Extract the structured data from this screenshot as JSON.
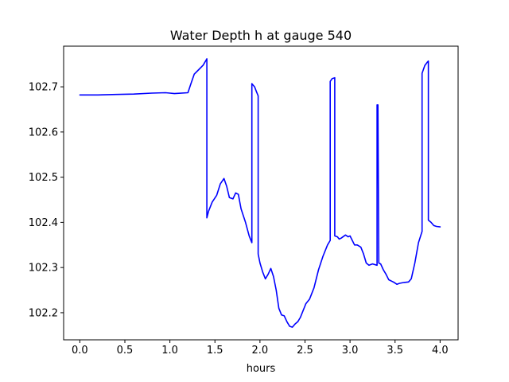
{
  "chart_data": {
    "type": "line",
    "title": "Water Depth h at gauge 540",
    "xlabel": "hours",
    "ylabel": "",
    "xlim": [
      -0.18,
      4.2
    ],
    "ylim": [
      102.14,
      102.79
    ],
    "xticks": [
      0.0,
      0.5,
      1.0,
      1.5,
      2.0,
      2.5,
      3.0,
      3.5,
      4.0
    ],
    "xtick_labels": [
      "0.0",
      "0.5",
      "1.0",
      "1.5",
      "2.0",
      "2.5",
      "3.0",
      "3.5",
      "4.0"
    ],
    "yticks": [
      102.2,
      102.3,
      102.4,
      102.5,
      102.6,
      102.7
    ],
    "ytick_labels": [
      "102.2",
      "102.3",
      "102.4",
      "102.5",
      "102.6",
      "102.7"
    ],
    "grid": false,
    "colors": {
      "line": "#0000ff",
      "axes": "#000000",
      "background": "#ffffff"
    },
    "series": [
      {
        "x": [
          0.0,
          0.2,
          0.4,
          0.6,
          0.8,
          0.95,
          1.0,
          1.05,
          1.2,
          1.23,
          1.27,
          1.32,
          1.37,
          1.41,
          1.41,
          1.43,
          1.47,
          1.52,
          1.56,
          1.6,
          1.63,
          1.66,
          1.7,
          1.73,
          1.76,
          1.79,
          1.84,
          1.88,
          1.91,
          1.91,
          1.94,
          1.96,
          1.98,
          1.98,
          2.0,
          2.03,
          2.06,
          2.09,
          2.12,
          2.15,
          2.18,
          2.21,
          2.24,
          2.27,
          2.3,
          2.33,
          2.36,
          2.39,
          2.42,
          2.45,
          2.48,
          2.51,
          2.55,
          2.6,
          2.65,
          2.7,
          2.75,
          2.78,
          2.78,
          2.8,
          2.83,
          2.83,
          2.86,
          2.88,
          2.9,
          2.95,
          2.98,
          3.0,
          3.02,
          3.05,
          3.08,
          3.12,
          3.15,
          3.18,
          3.21,
          3.25,
          3.3,
          3.3,
          3.31,
          3.32,
          3.34,
          3.37,
          3.4,
          3.43,
          3.46,
          3.49,
          3.52,
          3.55,
          3.6,
          3.65,
          3.68,
          3.72,
          3.76,
          3.8,
          3.8,
          3.83,
          3.86,
          3.87,
          3.87,
          3.9,
          3.93,
          3.96,
          4.0
        ],
        "y": [
          102.682,
          102.682,
          102.683,
          102.684,
          102.686,
          102.687,
          102.686,
          102.685,
          102.687,
          102.705,
          102.728,
          102.738,
          102.748,
          102.762,
          102.41,
          102.425,
          102.445,
          102.46,
          102.485,
          102.497,
          102.48,
          102.455,
          102.452,
          102.465,
          102.462,
          102.43,
          102.4,
          102.37,
          102.355,
          102.707,
          102.7,
          102.69,
          102.68,
          102.33,
          102.31,
          102.29,
          102.275,
          102.285,
          102.298,
          102.28,
          102.25,
          102.21,
          102.195,
          102.193,
          102.18,
          102.17,
          102.168,
          102.175,
          102.18,
          102.19,
          102.205,
          102.22,
          102.23,
          102.255,
          102.295,
          102.325,
          102.35,
          102.36,
          102.712,
          102.718,
          102.72,
          102.37,
          102.368,
          102.363,
          102.365,
          102.372,
          102.368,
          102.37,
          102.362,
          102.35,
          102.35,
          102.345,
          102.33,
          102.31,
          102.305,
          102.308,
          102.305,
          102.66,
          102.66,
          102.31,
          102.308,
          102.295,
          102.285,
          102.273,
          102.27,
          102.267,
          102.263,
          102.265,
          102.267,
          102.268,
          102.275,
          102.31,
          102.355,
          102.38,
          102.73,
          102.747,
          102.755,
          102.757,
          102.405,
          102.4,
          102.393,
          102.391,
          102.39
        ]
      }
    ]
  }
}
